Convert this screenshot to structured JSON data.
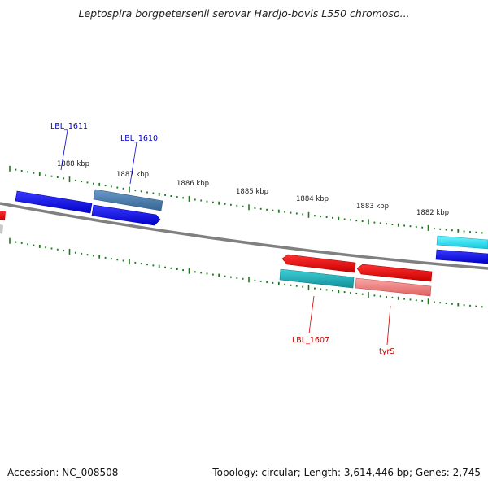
{
  "title": "Leptospira borgpetersenii serovar Hardjo-bovis L550 chromoso...",
  "footer": {
    "accession": "Accession: NC_008508",
    "summary": "Topology: circular; Length: 3,614,446 bp; Genes: 2,745"
  },
  "ruler_labels": [
    "1888 kbp",
    "1887 kbp",
    "1886 kbp",
    "1885 kbp",
    "1884 kbp",
    "1883 kbp",
    "1882 kbp"
  ],
  "gene_labels": [
    {
      "text": "LBL_1611",
      "color": "#0000cc"
    },
    {
      "text": "LBL_1610",
      "color": "#0000cc"
    },
    {
      "text": "LBL_1607",
      "color": "#cc0000"
    },
    {
      "text": "tyrS",
      "color": "#cc0000"
    }
  ],
  "colors": {
    "backbone": "#808080",
    "tick": "#1a7a1a",
    "blue": "#0000ee",
    "steelblue": "#4a7fb5",
    "red": "#ee0000",
    "teal": "#20b0b8",
    "pink": "#ef8080",
    "cyan": "#30e0f0",
    "grey": "#c0c0c0"
  }
}
